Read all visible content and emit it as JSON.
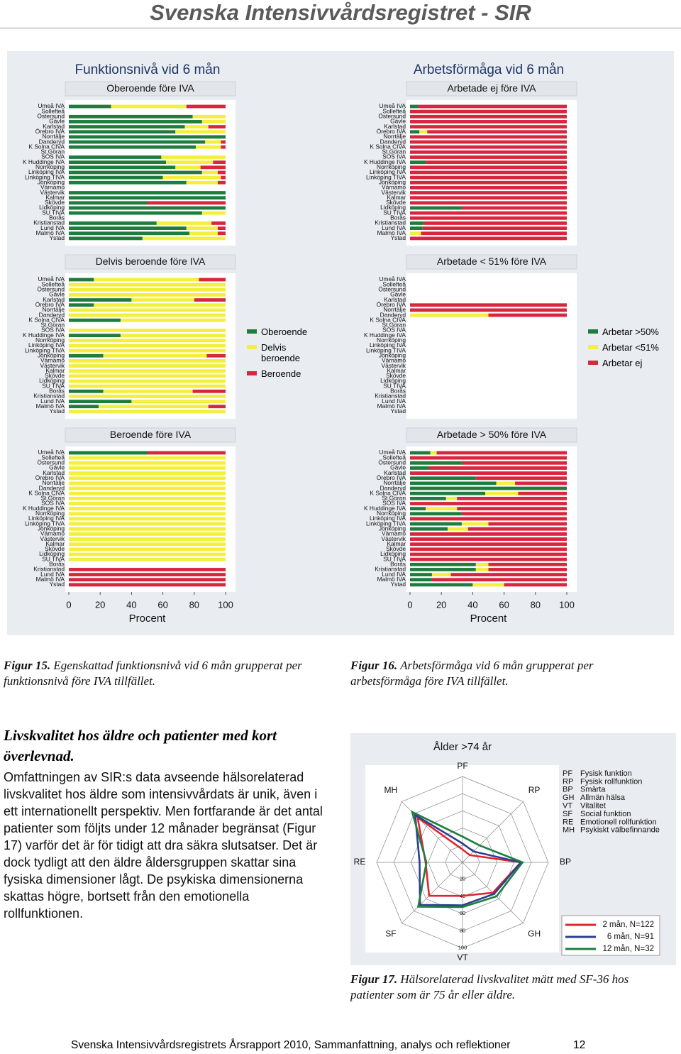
{
  "header": {
    "title": "Svenska Intensivvårdsregistret - SIR"
  },
  "figure_titles": [
    "Funktionsnivå vid 6 mån",
    "Arbetsförmåga vid 6 mån"
  ],
  "chart_data": [
    {
      "type": "bar",
      "title": "Oberoende före IVA",
      "xlim": [
        0,
        100
      ],
      "categories": [
        "Umeå IVA",
        "Sollefteå",
        "Östersund",
        "Gävle",
        "Karlstad",
        "Örebro IVA",
        "Norrtälje",
        "Danderyd",
        "K Solna CIVA",
        "St Göran",
        "SÖS IVA",
        "K Huddinge IVA",
        "Norrköping",
        "Linköping IVA",
        "Linköping TIVA",
        "Jönköping",
        "Värnamo",
        "Västervik",
        "Kalmar",
        "Skövde",
        "Lidköping",
        "SU TIVA",
        "Borås",
        "Kristianstad",
        "Lund IVA",
        "Malmö IVA",
        "Ystad"
      ],
      "series": [
        {
          "name": "Oberoende",
          "color": "#1e7d3e",
          "values": [
            27,
            0,
            79,
            85,
            74,
            68,
            100,
            87,
            81,
            0,
            59,
            62,
            68,
            85,
            60,
            75,
            0,
            100,
            100,
            50,
            100,
            85,
            0,
            56,
            75,
            77,
            47
          ]
        },
        {
          "name": "Delvis beroende",
          "color": "#f3ef3c",
          "values": [
            48,
            0,
            21,
            15,
            15,
            32,
            0,
            10,
            16,
            0,
            41,
            30,
            16,
            10,
            37,
            20,
            0,
            0,
            0,
            0,
            0,
            15,
            0,
            35,
            20,
            18,
            53
          ]
        },
        {
          "name": "Beroende",
          "color": "#d7263d",
          "values": [
            25,
            0,
            0,
            0,
            11,
            0,
            0,
            3,
            3,
            0,
            0,
            8,
            16,
            5,
            3,
            5,
            0,
            0,
            0,
            50,
            0,
            0,
            0,
            9,
            5,
            5,
            0
          ]
        }
      ]
    },
    {
      "type": "bar",
      "title": "Delvis beroende före IVA",
      "xlim": [
        0,
        100
      ],
      "legend": "right",
      "categories": [
        "Umeå IVA",
        "Sollefteå",
        "Östersund",
        "Gävle",
        "Karlstad",
        "Örebro IVA",
        "Norrtälje",
        "Danderyd",
        "K Solna CIVA",
        "St Göran",
        "SÖS IVA",
        "K Huddinge IVA",
        "Norrköping",
        "Linköping IVA",
        "Linköping TIVA",
        "Jönköping",
        "Värnamo",
        "Västervik",
        "Kalmar",
        "Skövde",
        "Lidköping",
        "SU TIVA",
        "Borås",
        "Kristianstad",
        "Lund IVA",
        "Malmö IVA",
        "Ystad"
      ],
      "series": [
        {
          "name": "Oberoende",
          "color": "#1e7d3e",
          "values": [
            16,
            0,
            0,
            0,
            40,
            16,
            0,
            0,
            33,
            0,
            0,
            33,
            0,
            0,
            0,
            22,
            0,
            0,
            0,
            0,
            0,
            0,
            22,
            0,
            40,
            19,
            0
          ]
        },
        {
          "name": "Delvis beroende",
          "color": "#f3ef3c",
          "values": [
            67,
            100,
            100,
            100,
            40,
            84,
            100,
            100,
            67,
            0,
            100,
            67,
            100,
            100,
            100,
            66,
            100,
            100,
            100,
            100,
            100,
            100,
            57,
            100,
            60,
            70,
            100
          ]
        },
        {
          "name": "Beroende",
          "color": "#d7263d",
          "values": [
            17,
            0,
            0,
            0,
            20,
            0,
            0,
            0,
            0,
            0,
            0,
            0,
            0,
            0,
            0,
            12,
            0,
            0,
            0,
            0,
            0,
            0,
            21,
            0,
            0,
            11,
            0
          ]
        }
      ]
    },
    {
      "type": "bar",
      "title": "Beroende före IVA",
      "xlim": [
        0,
        100
      ],
      "xticks": [
        0,
        20,
        40,
        60,
        80,
        100
      ],
      "xlabel": "Procent",
      "categories": [
        "Umeå IVA",
        "Sollefteå",
        "Östersund",
        "Gävle",
        "Karlstad",
        "Örebro IVA",
        "Norrtälje",
        "Danderyd",
        "K Solna CIVA",
        "St Göran",
        "SÖS IVA",
        "K Huddinge IVA",
        "Norrköping",
        "Linköping IVA",
        "Linköping TIVA",
        "Jönköping",
        "Värnamo",
        "Västervik",
        "Kalmar",
        "Skövde",
        "Lidköping",
        "SU TIVA",
        "Borås",
        "Kristianstad",
        "Lund IVA",
        "Malmö IVA",
        "Ystad"
      ],
      "series": [
        {
          "name": "Oberoende",
          "color": "#1e7d3e",
          "values": [
            50,
            0,
            0,
            0,
            0,
            0,
            0,
            0,
            0,
            0,
            0,
            0,
            0,
            0,
            0,
            0,
            0,
            0,
            0,
            0,
            0,
            0,
            0,
            0,
            0,
            0,
            0
          ]
        },
        {
          "name": "Delvis beroende",
          "color": "#f3ef3c",
          "values": [
            0,
            100,
            100,
            100,
            100,
            100,
            100,
            100,
            100,
            100,
            100,
            100,
            100,
            100,
            100,
            100,
            100,
            100,
            100,
            100,
            100,
            100,
            0,
            0,
            0,
            0,
            0
          ]
        },
        {
          "name": "Beroende",
          "color": "#d7263d",
          "values": [
            50,
            0,
            0,
            0,
            0,
            0,
            0,
            0,
            0,
            0,
            0,
            0,
            0,
            0,
            0,
            0,
            0,
            0,
            0,
            0,
            0,
            0,
            0,
            100,
            100,
            100,
            100
          ]
        }
      ]
    },
    {
      "type": "bar",
      "title": "Arbetade ej före IVA",
      "xlim": [
        0,
        100
      ],
      "categories": [
        "Umeå IVA",
        "Sollefteå",
        "Östersund",
        "Gävle",
        "Karlstad",
        "Örebro IVA",
        "Norrtälje",
        "Danderyd",
        "K Solna CIVA",
        "St Göran",
        "SÖS IVA",
        "K Huddinge IVA",
        "Norrköping",
        "Linköping IVA",
        "Linköping TIVA",
        "Jönköping",
        "Värnamo",
        "Västervik",
        "Kalmar",
        "Skövde",
        "Lidköping",
        "SU TIVA",
        "Borås",
        "Kristianstad",
        "Lund IVA",
        "Malmö IVA",
        "Ystad"
      ],
      "series": [
        {
          "name": "Arbetar >50%",
          "color": "#1e7d3e",
          "values": [
            5,
            0,
            0,
            0,
            0,
            6,
            0,
            0,
            0,
            0,
            0,
            10,
            0,
            0,
            0,
            0,
            0,
            0,
            0,
            0,
            33,
            0,
            0,
            9,
            8,
            0,
            0
          ]
        },
        {
          "name": "Arbetar <51%",
          "color": "#f3ef3c",
          "values": [
            0,
            0,
            0,
            0,
            0,
            5,
            0,
            0,
            0,
            0,
            0,
            0,
            0,
            0,
            0,
            0,
            0,
            0,
            0,
            0,
            0,
            0,
            0,
            0,
            0,
            7,
            0
          ]
        },
        {
          "name": "Arbetar ej",
          "color": "#d7263d",
          "values": [
            95,
            100,
            100,
            100,
            100,
            89,
            100,
            100,
            100,
            100,
            100,
            90,
            100,
            100,
            100,
            100,
            100,
            100,
            100,
            100,
            67,
            100,
            100,
            91,
            92,
            93,
            100
          ]
        }
      ]
    },
    {
      "type": "bar",
      "title": "Arbetade < 51% före IVA",
      "xlim": [
        0,
        100
      ],
      "legend": "right",
      "categories": [
        "Umeå IVA",
        "Sollefteå",
        "Östersund",
        "Gävle",
        "Karlstad",
        "Örebro IVA",
        "Norrtälje",
        "Danderyd",
        "K Solna CIVA",
        "St Göran",
        "SÖS IVA",
        "K Huddinge IVA",
        "Norrköping",
        "Linköping IVA",
        "Linköping TIVA",
        "Jönköping",
        "Värnamo",
        "Västervik",
        "Kalmar",
        "Skövde",
        "Lidköping",
        "SU TIVA",
        "Borås",
        "Kristianstad",
        "Lund IVA",
        "Malmö IVA",
        "Ystad"
      ],
      "series": [
        {
          "name": "Arbetar >50%",
          "color": "#1e7d3e",
          "values": [
            0,
            0,
            0,
            0,
            0,
            0,
            0,
            0,
            0,
            0,
            0,
            0,
            0,
            0,
            0,
            0,
            0,
            0,
            0,
            0,
            0,
            0,
            0,
            0,
            0,
            0,
            0
          ]
        },
        {
          "name": "Arbetar <51%",
          "color": "#f3ef3c",
          "values": [
            0,
            0,
            0,
            0,
            0,
            0,
            0,
            50,
            0,
            0,
            0,
            0,
            0,
            0,
            0,
            0,
            0,
            0,
            0,
            0,
            0,
            0,
            0,
            0,
            0,
            0,
            0
          ]
        },
        {
          "name": "Arbetar ej",
          "color": "#d7263d",
          "values": [
            0,
            0,
            0,
            0,
            0,
            100,
            100,
            50,
            0,
            0,
            0,
            0,
            0,
            0,
            0,
            0,
            0,
            0,
            0,
            0,
            0,
            0,
            0,
            0,
            0,
            0,
            0
          ]
        }
      ]
    },
    {
      "type": "bar",
      "title": "Arbetade > 50% före IVA",
      "xlim": [
        0,
        100
      ],
      "xticks": [
        0,
        20,
        40,
        60,
        80,
        100
      ],
      "xlabel": "Procent",
      "categories": [
        "Umeå IVA",
        "Sollefteå",
        "Östersund",
        "Gävle",
        "Karlstad",
        "Örebro IVA",
        "Norrtälje",
        "Danderyd",
        "K Solna CIVA",
        "St Göran",
        "SÖS IVA",
        "K Huddinge IVA",
        "Norrköping",
        "Linköping IVA",
        "Linköping TIVA",
        "Jönköping",
        "Värnamo",
        "Västervik",
        "Kalmar",
        "Skövde",
        "Lidköping",
        "SU TIVA",
        "Borås",
        "Kristianstad",
        "Lund IVA",
        "Malmö IVA",
        "Ystad"
      ],
      "series": [
        {
          "name": "Arbetar >50%",
          "color": "#1e7d3e",
          "values": [
            13,
            0,
            33,
            12,
            0,
            42,
            55,
            100,
            48,
            23,
            0,
            10,
            33,
            0,
            33,
            24,
            0,
            0,
            0,
            0,
            0,
            0,
            42,
            42,
            14,
            14,
            40
          ]
        },
        {
          "name": "Arbetar <51%",
          "color": "#f3ef3c",
          "values": [
            4,
            0,
            0,
            0,
            0,
            0,
            12,
            0,
            21,
            7,
            0,
            20,
            0,
            0,
            17,
            13,
            0,
            0,
            0,
            0,
            0,
            0,
            8,
            8,
            12,
            0,
            20
          ]
        },
        {
          "name": "Arbetar ej",
          "color": "#d7263d",
          "values": [
            83,
            100,
            67,
            88,
            100,
            58,
            33,
            0,
            31,
            70,
            100,
            70,
            67,
            100,
            50,
            63,
            100,
            100,
            100,
            100,
            100,
            100,
            50,
            50,
            74,
            86,
            40
          ]
        }
      ]
    },
    {
      "type": "radar",
      "title": "Ålder >74 år",
      "axes": [
        "PF",
        "RP",
        "BP",
        "GH",
        "VT",
        "SF",
        "RE",
        "MH"
      ],
      "rlim": [
        0,
        100
      ],
      "rticks": [
        20,
        40,
        60,
        80,
        100
      ],
      "series": [
        {
          "name": "2 mån, N=122",
          "color": "#e0242f",
          "values": [
            15,
            12,
            68,
            50,
            39,
            55,
            43,
            74
          ]
        },
        {
          "name": "6 mån, N=91",
          "color": "#2b3f8f",
          "values": [
            22,
            18,
            68,
            52,
            50,
            70,
            50,
            78
          ]
        },
        {
          "name": "12 mån, N=32",
          "color": "#1e7d3e",
          "values": [
            30,
            28,
            70,
            56,
            52,
            73,
            42,
            83
          ]
        }
      ],
      "definitions": [
        {
          "abbr": "PF",
          "text": "Fysisk funktion"
        },
        {
          "abbr": "RP",
          "text": "Fysisk rollfunktion"
        },
        {
          "abbr": "BP",
          "text": "Smärta"
        },
        {
          "abbr": "GH",
          "text": "Allmän hälsa"
        },
        {
          "abbr": "VT",
          "text": "Vitalitet"
        },
        {
          "abbr": "SF",
          "text": "Social funktion"
        },
        {
          "abbr": "RE",
          "text": "Emotionell rollfunktion"
        },
        {
          "abbr": "MH",
          "text": "Psykiskt välbefinnande"
        }
      ]
    }
  ],
  "captions": [
    {
      "label": "Figur 15.",
      "text": "Egenskattad funktionsnivå vid 6 mån grupperat per funktionsnivå före IVA tillfället."
    },
    {
      "label": "Figur 16.",
      "text": "Arbetsförmåga vid 6 mån grupperat per arbetsförmåga före IVA tillfället."
    },
    {
      "label": "Figur 17.",
      "text": "Hälsorelaterad livskvalitet mätt med SF-36 hos patienter som är 75 år eller äldre."
    }
  ],
  "section": {
    "heading": "Livskvalitet hos äldre och patienter med kort överlevnad.",
    "paragraph": "Omfattningen av SIR:s data avseende hälsorelaterad livskvalitet hos äldre som intensivvårdats är unik, även i ett internationellt perspektiv. Men fortfarande är det antal patienter som följts under 12 månader begränsat (Figur 17) varför det är för tidigt att dra säkra slutsatser. Det är dock tydligt att den äldre åldersgruppen skattar sina fysiska dimensioner lågt. De psykiska dimensionerna skattas högre, bortsett från den emotionella rollfunktionen."
  },
  "footer": {
    "text": "Svenska Intensivvårdsregistrets Årsrapport 2010, Sammanfattning, analys och reflektioner",
    "page": 12
  }
}
